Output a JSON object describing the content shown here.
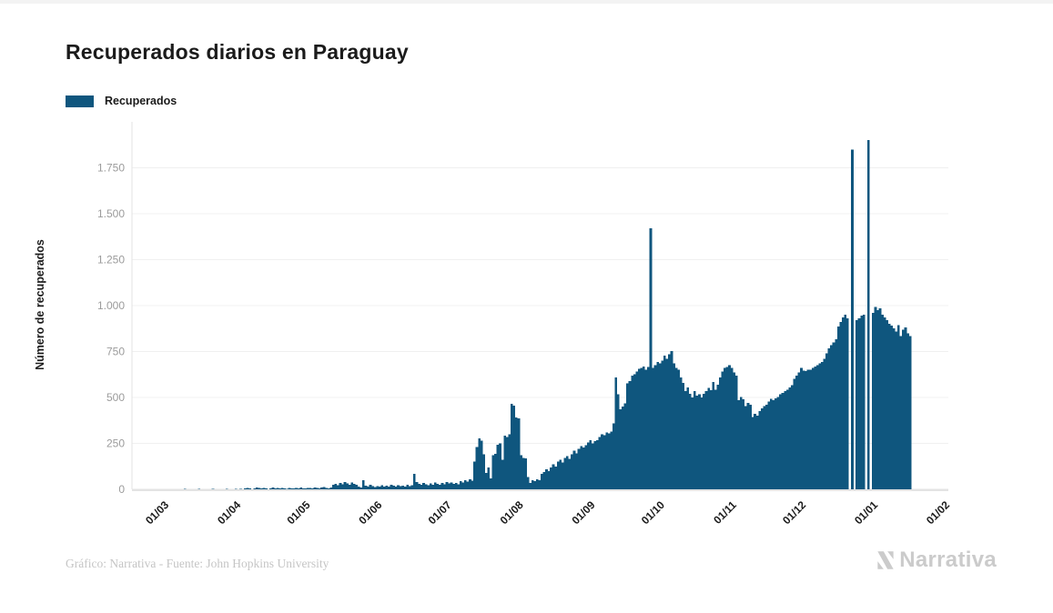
{
  "header": {
    "title": "Recuperados diarios en Paraguay"
  },
  "legend": {
    "label": "Recuperados",
    "color": "#0F567E"
  },
  "chart_data": {
    "type": "bar",
    "title": "Recuperados diarios en Paraguay",
    "series_name": "Recuperados",
    "ylabel": "Número de recuperados",
    "color": "#0F567E",
    "ylim": [
      0,
      2000
    ],
    "grid": true,
    "legend_position": "top-left",
    "y_ticks": [
      {
        "label": "0",
        "value": 0
      },
      {
        "label": "250",
        "value": 250
      },
      {
        "label": "500",
        "value": 500
      },
      {
        "label": "750",
        "value": 750
      },
      {
        "label": "1.000",
        "value": 1000
      },
      {
        "label": "1.250",
        "value": 1250
      },
      {
        "label": "1.500",
        "value": 1500
      },
      {
        "label": "1.750",
        "value": 1750
      }
    ],
    "x_ticks": [
      {
        "label": "01/03",
        "day": 15
      },
      {
        "label": "01/04",
        "day": 46
      },
      {
        "label": "01/05",
        "day": 76
      },
      {
        "label": "01/06",
        "day": 107
      },
      {
        "label": "01/07",
        "day": 137
      },
      {
        "label": "01/08",
        "day": 168
      },
      {
        "label": "01/09",
        "day": 199
      },
      {
        "label": "01/10",
        "day": 229
      },
      {
        "label": "01/11",
        "day": 260
      },
      {
        "label": "01/12",
        "day": 290
      },
      {
        "label": "01/01",
        "day": 321
      },
      {
        "label": "01/02",
        "day": 352
      }
    ],
    "total_days": 352,
    "values": [
      0,
      0,
      0,
      0,
      0,
      0,
      0,
      0,
      0,
      0,
      0,
      0,
      0,
      0,
      0,
      0,
      0,
      0,
      0,
      1,
      0,
      0,
      2,
      0,
      0,
      1,
      0,
      0,
      3,
      0,
      0,
      1,
      0,
      0,
      2,
      0,
      0,
      1,
      0,
      0,
      2,
      0,
      1,
      0,
      2,
      0,
      3,
      0,
      5,
      8,
      4,
      0,
      6,
      10,
      7,
      4,
      8,
      5,
      0,
      6,
      9,
      4,
      7,
      5,
      8,
      6,
      3,
      7,
      4,
      6,
      8,
      5,
      9,
      6,
      4,
      7,
      8,
      6,
      10,
      7,
      5,
      9,
      12,
      8,
      6,
      10,
      25,
      30,
      22,
      35,
      28,
      40,
      32,
      26,
      38,
      30,
      24,
      15,
      11,
      50,
      20,
      15,
      25,
      18,
      12,
      18,
      15,
      22,
      16,
      20,
      14,
      25,
      19,
      16,
      23,
      17,
      21,
      15,
      24,
      18,
      22,
      85,
      40,
      30,
      25,
      35,
      28,
      22,
      32,
      26,
      38,
      30,
      24,
      35,
      28,
      40,
      32,
      36,
      30,
      35,
      28,
      45,
      38,
      50,
      42,
      55,
      48,
      150,
      230,
      277,
      265,
      190,
      90,
      120,
      60,
      185,
      193,
      243,
      250,
      160,
      293,
      285,
      300,
      465,
      455,
      390,
      385,
      185,
      170,
      168,
      68,
      35,
      50,
      45,
      55,
      50,
      85,
      95,
      110,
      100,
      120,
      135,
      125,
      150,
      160,
      145,
      170,
      180,
      165,
      190,
      210,
      195,
      220,
      235,
      228,
      240,
      255,
      268,
      250,
      262,
      268,
      285,
      300,
      295,
      310,
      305,
      315,
      360,
      610,
      518,
      435,
      450,
      468,
      577,
      590,
      618,
      627,
      640,
      655,
      660,
      668,
      650,
      665,
      1420,
      660,
      675,
      693,
      685,
      700,
      727,
      710,
      735,
      752,
      685,
      660,
      650,
      610,
      580,
      535,
      555,
      520,
      500,
      535,
      510,
      518,
      500,
      520,
      535,
      552,
      540,
      585,
      543,
      570,
      610,
      640,
      660,
      665,
      677,
      660,
      635,
      620,
      485,
      502,
      490,
      452,
      470,
      460,
      393,
      410,
      400,
      427,
      440,
      452,
      460,
      478,
      493,
      485,
      495,
      502,
      518,
      525,
      535,
      543,
      555,
      568,
      602,
      618,
      635,
      660,
      645,
      643,
      650,
      652,
      660,
      668,
      677,
      685,
      693,
      710,
      740,
      768,
      785,
      800,
      818,
      885,
      910,
      935,
      950,
      930,
      0,
      1850,
      0,
      920,
      930,
      945,
      950,
      0,
      1900,
      0,
      960,
      993,
      975,
      985,
      950,
      935,
      920,
      902,
      890,
      877,
      860,
      893,
      835,
      868,
      880,
      850,
      835
    ]
  },
  "footer": {
    "credit": "Gráfico: Narrativa - Fuente: John Hopkins University",
    "logo_text": "Narrativa"
  }
}
